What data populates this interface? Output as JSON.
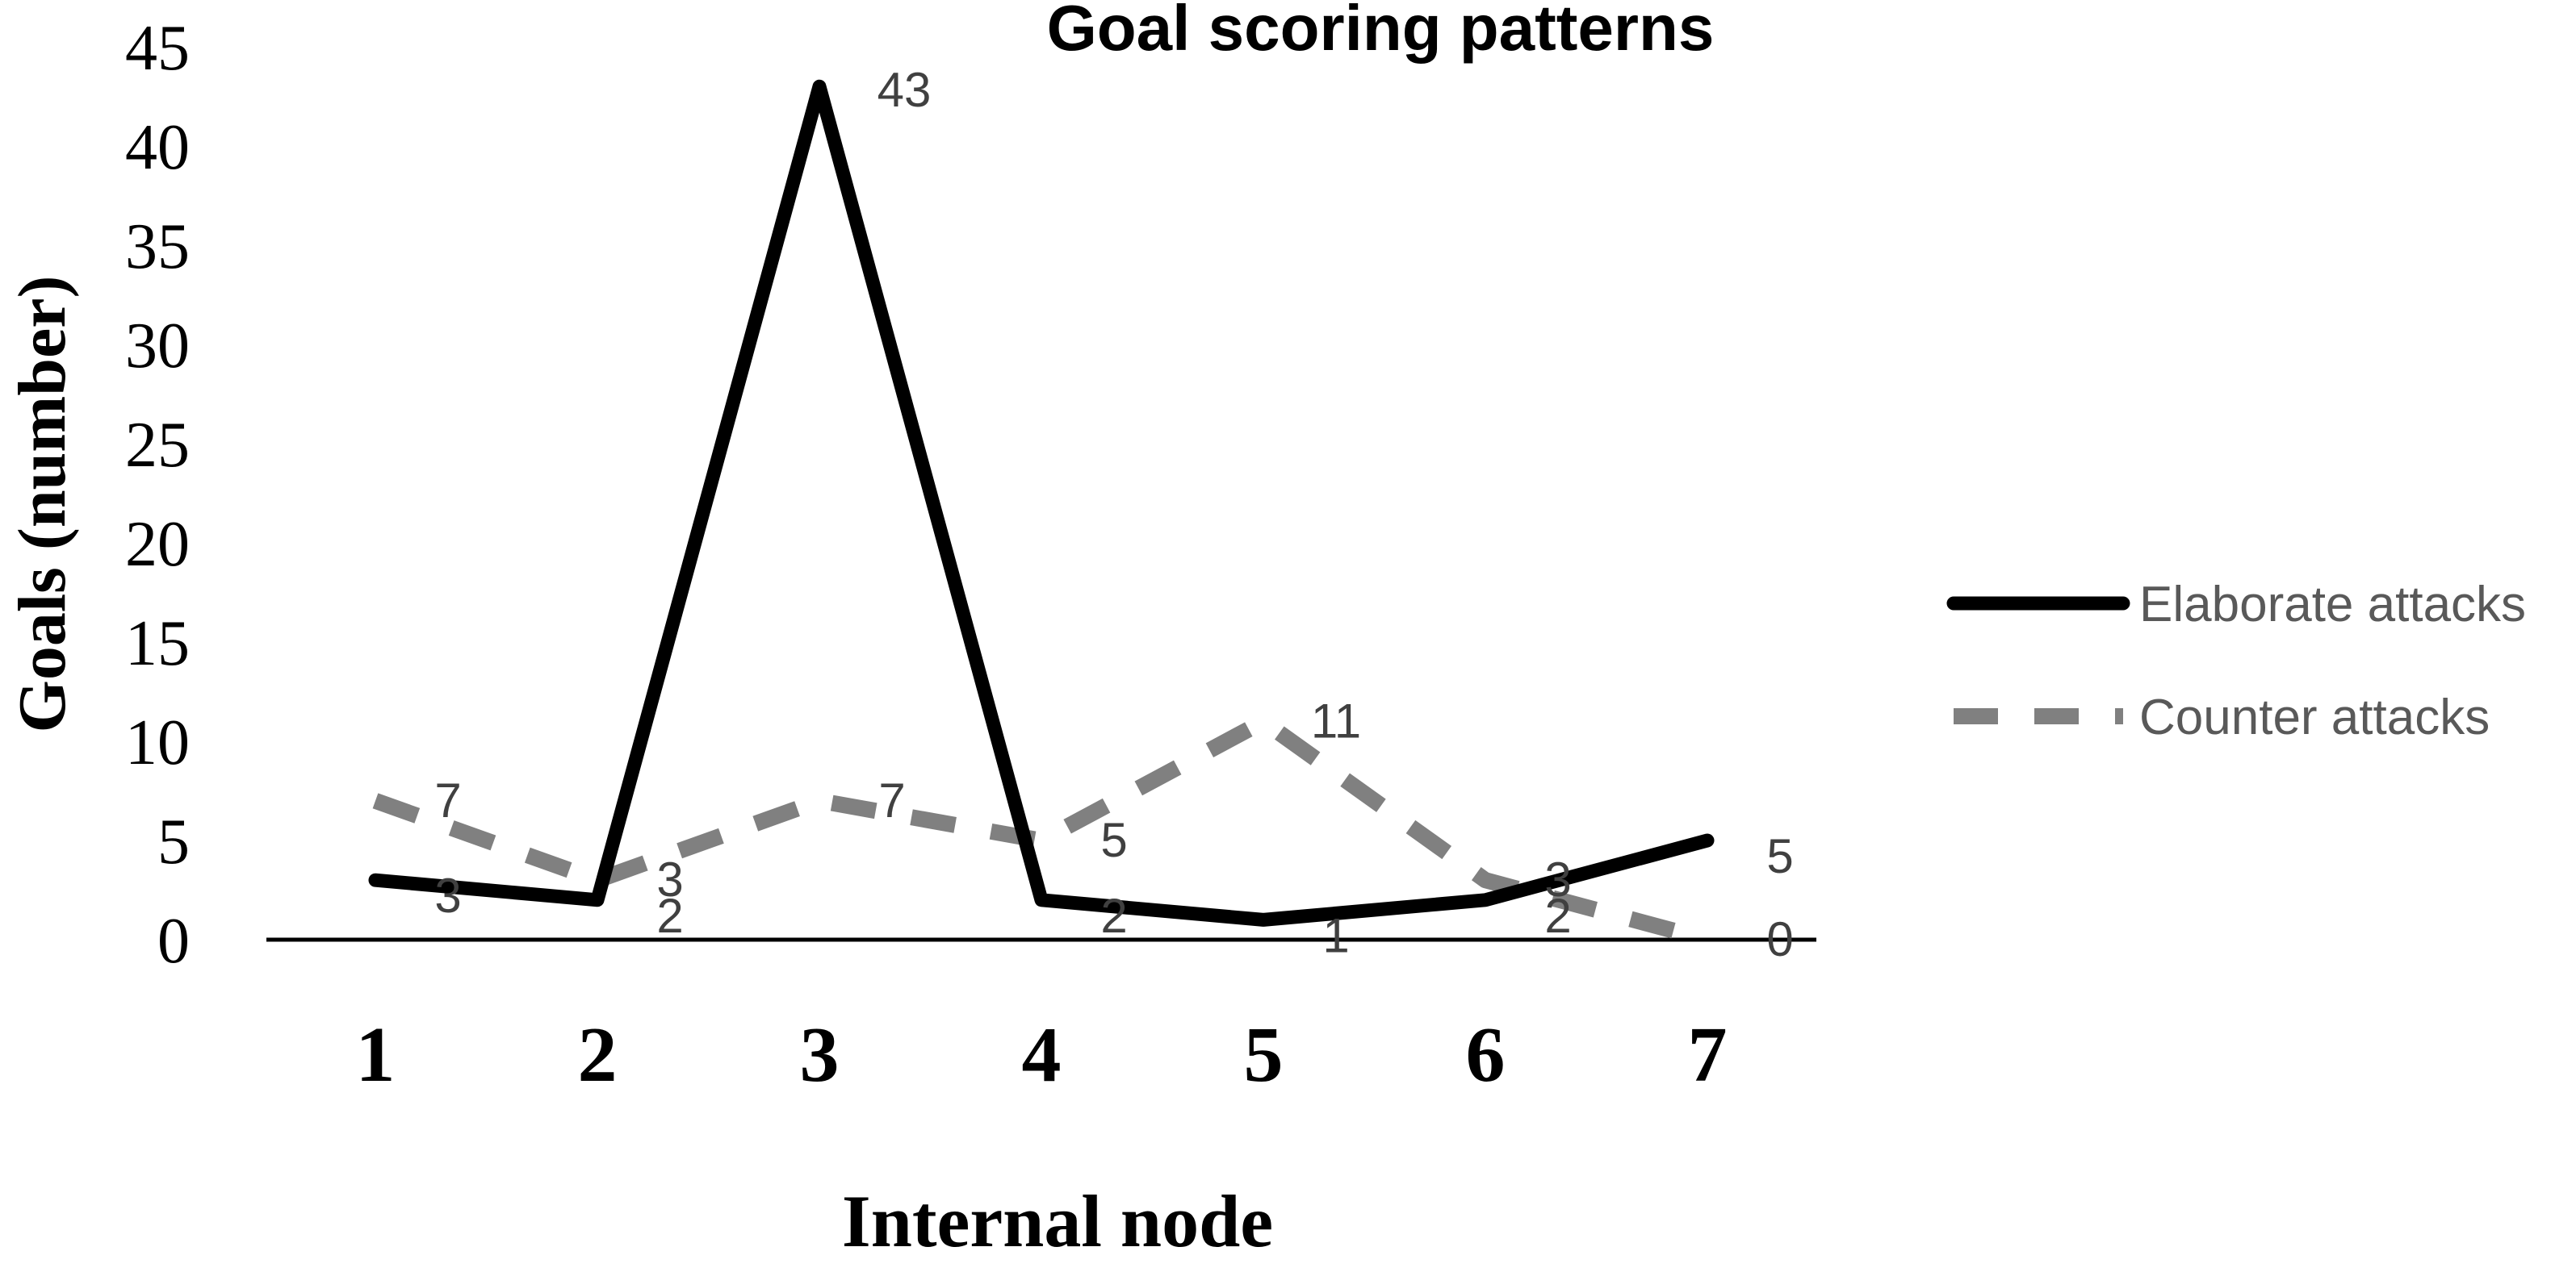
{
  "chart_data": {
    "type": "line",
    "title": "Goal scoring patterns",
    "xlabel": "Internal node",
    "ylabel": "Goals (number)",
    "categories": [
      "1",
      "2",
      "3",
      "4",
      "5",
      "6",
      "7"
    ],
    "ylim": [
      0,
      45
    ],
    "yticks": [
      "0",
      "5",
      "10",
      "15",
      "20",
      "25",
      "30",
      "35",
      "40",
      "45"
    ],
    "grid": false,
    "legend_position": "right",
    "series": [
      {
        "name": "Elaborate attacks",
        "values": [
          3,
          2,
          43,
          2,
          1,
          2,
          5
        ],
        "color": "#000000",
        "style": "solid"
      },
      {
        "name": "Counter attacks",
        "values": [
          7,
          3,
          7,
          5,
          11,
          3,
          0
        ],
        "color": "#808080",
        "style": "dashed"
      }
    ]
  }
}
